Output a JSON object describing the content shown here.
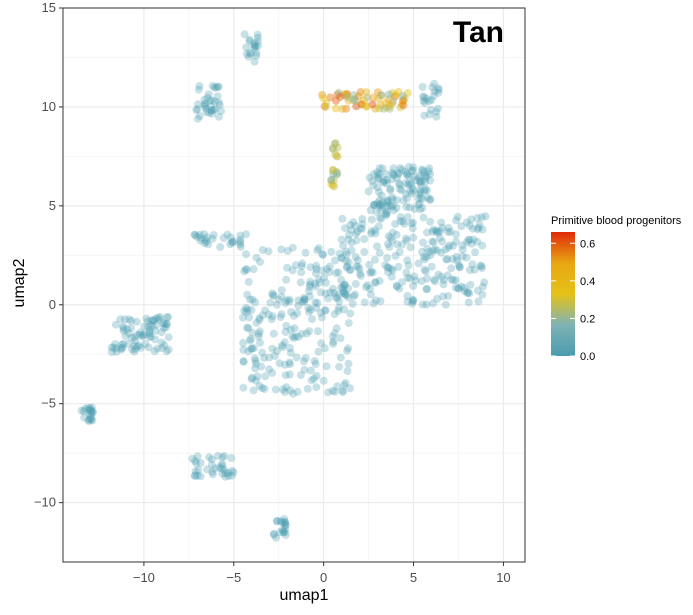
{
  "chart_data": {
    "type": "scatter",
    "title": "Tan",
    "xlabel": "umap1",
    "ylabel": "umap2",
    "xlim": [
      -14.5,
      11.2
    ],
    "ylim": [
      -13.0,
      15.0
    ],
    "xticks": [
      -10,
      -5,
      0,
      5,
      10
    ],
    "yticks": [
      -10,
      -5,
      0,
      5,
      10,
      15
    ],
    "xtick_labels": [
      "−10",
      "−5",
      "0",
      "5",
      "10"
    ],
    "ytick_labels": [
      "−10",
      "−5",
      "0",
      "5",
      "10",
      "15"
    ],
    "grid": true,
    "legend": {
      "title": "Primitive blood progenitors",
      "placement": "right",
      "range": [
        0,
        0.66
      ],
      "ticks": [
        0.0,
        0.2,
        0.4,
        0.6
      ],
      "tick_labels": [
        "0.0",
        "0.2",
        "0.4",
        "0.6"
      ],
      "colors": [
        "#4a9bb0",
        "#7fb3b5",
        "#e5c217",
        "#e8a612",
        "#e12a0c"
      ]
    },
    "point_color_low": "#4a9bb0",
    "clusters": [
      {
        "x": [
          -4.4,
          -3.6
        ],
        "y": [
          12.2,
          13.8
        ],
        "value": 0.0
      },
      {
        "x": [
          -7.1,
          -5.7
        ],
        "y": [
          9.4,
          11.2
        ],
        "value": 0.0
      },
      {
        "x": [
          -7.2,
          -4.3
        ],
        "y": [
          2.9,
          3.6
        ],
        "value": 0.0
      },
      {
        "x": [
          -11.8,
          -8.6
        ],
        "y": [
          -2.4,
          -0.6
        ],
        "value": 0.0
      },
      {
        "x": [
          -13.5,
          -12.8
        ],
        "y": [
          -5.9,
          -5.0
        ],
        "value": 0.0
      },
      {
        "x": [
          -7.3,
          -5.0
        ],
        "y": [
          -8.7,
          -7.6
        ],
        "value": 0.0
      },
      {
        "x": [
          -2.8,
          -2.0
        ],
        "y": [
          -11.8,
          -10.8
        ],
        "value": 0.0
      },
      {
        "x": [
          -4.5,
          1.5
        ],
        "y": [
          -4.5,
          3.0
        ],
        "value": 0.0
      },
      {
        "x": [
          1.0,
          9.0
        ],
        "y": [
          0.0,
          4.5
        ],
        "value": 0.0
      },
      {
        "x": [
          2.5,
          6.0
        ],
        "y": [
          4.5,
          7.0
        ],
        "value": 0.0
      },
      {
        "x": [
          5.5,
          6.4
        ],
        "y": [
          9.5,
          11.2
        ],
        "value": 0.0
      },
      {
        "x": [
          -0.2,
          4.8
        ],
        "y": [
          9.9,
          10.8
        ],
        "value": 0.55
      },
      {
        "x": [
          0.4,
          0.8
        ],
        "y": [
          5.8,
          8.2
        ],
        "value": 0.3
      }
    ]
  }
}
